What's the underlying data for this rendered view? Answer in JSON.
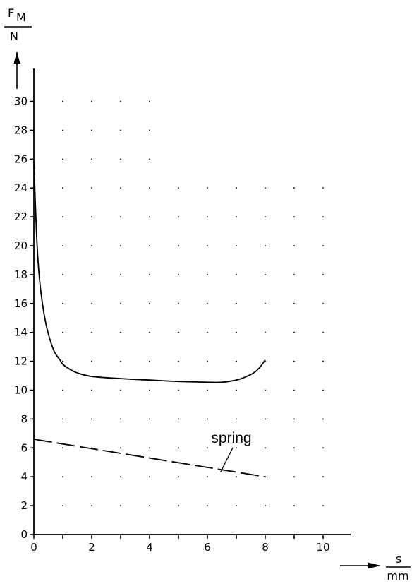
{
  "chart_data": {
    "type": "line",
    "title": "",
    "xlabel": {
      "symbol": "s",
      "unit": "mm"
    },
    "ylabel": {
      "symbol": "F",
      "subscript": "M",
      "unit": "N"
    },
    "xlim": [
      0,
      11
    ],
    "ylim": [
      0,
      31
    ],
    "x_ticks": [
      0,
      1,
      2,
      3,
      4,
      5,
      6,
      7,
      8,
      9,
      10
    ],
    "x_tick_labels": [
      "0",
      "2",
      "4",
      "6",
      "8",
      "10"
    ],
    "y_ticks": [
      0,
      2,
      4,
      6,
      8,
      10,
      12,
      14,
      16,
      18,
      20,
      22,
      24,
      26,
      28,
      30
    ],
    "y_tick_labels": [
      "0",
      "2",
      "4",
      "6",
      "8",
      "10",
      "12",
      "14",
      "16",
      "18",
      "20",
      "22",
      "24",
      "26",
      "28",
      "30"
    ],
    "grid": "dotted",
    "series": [
      {
        "style": "solid",
        "x": [
          0,
          0.1,
          0.2,
          0.35,
          0.5,
          0.7,
          0.9,
          1.0,
          1.2,
          1.5,
          2.0,
          3.0,
          4.0,
          5.0,
          6.0,
          6.5,
          7.0,
          7.3,
          7.6,
          7.8,
          8.0
        ],
        "y": [
          25.8,
          20.5,
          17.6,
          15.3,
          13.9,
          12.7,
          12.1,
          11.8,
          11.5,
          11.2,
          10.95,
          10.8,
          10.7,
          10.6,
          10.55,
          10.55,
          10.7,
          10.9,
          11.2,
          11.55,
          12.1
        ]
      },
      {
        "name": "spring",
        "style": "dashed",
        "x": [
          0,
          8
        ],
        "y": [
          6.6,
          4.0
        ]
      }
    ],
    "annotations": [
      {
        "text": "spring",
        "points_to_x": 6.5,
        "points_to_y": 4.5
      }
    ]
  }
}
